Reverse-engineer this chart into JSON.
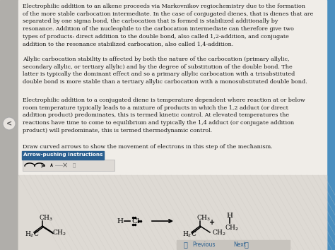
{
  "bg_left": "#c8c8c8",
  "bg_main": "#f0ede8",
  "bg_bottom": "#dedad4",
  "bg_toolbar": "#e8e4de",
  "btn_color": "#2a5f8f",
  "btn_text_color": "#ffffff",
  "nav_color": "#2a5f8f",
  "text_color": "#1a1a1a",
  "body_fontsize": 5.8,
  "para1": "Electrophilic addition to an alkene proceeds via Markovnikov regiochemistry due to the formation\nof the more stable carbocation intermediate. In the case of conjugated dienes, that is dienes that are\nseparated by one sigma bond, the carbocation that is formed is stabilized additionally by\nresonance. Addition of the nucleophile to the carbocation intermediate can therefore give two\ntypes of products: direct addition to the double bond, also called 1,2-addition, and conjugate\naddition to the resonance stabilized carbocation, also called 1,4-addition.",
  "para2": "Allylic carbocation stability is affected by both the nature of the carbocation (primary allylic,\nsecondary allylic, or tertiary allylic) and by the degree of substitution of the double bond. The\nlatter is typically the dominant effect and so a primary allylic carbocation with a trisubstituted\ndouble bond is more stable than a tertiary allylic carbocation with a monosubstituted double bond.",
  "para3": "Electrophilic addition to a conjugated diene is temperature dependent where reaction at or below\nroom temperature typically leads to a mixture of products in which the 1,2 adduct (or direct\naddition product) predominates, this is termed kinetic control. At elevated temperatures the\nreactions have time to come to equilibrium and typically the 1,4 adduct (or conjugate addition\nproduct) will predominate, this is termed thermodynamic control.",
  "para4": "Draw curved arrows to show the movement of electrons in this step of the mechanism.",
  "btn_label": "Arrow-pushing Instructions",
  "previous_text": "Previous",
  "next_text": "Next"
}
